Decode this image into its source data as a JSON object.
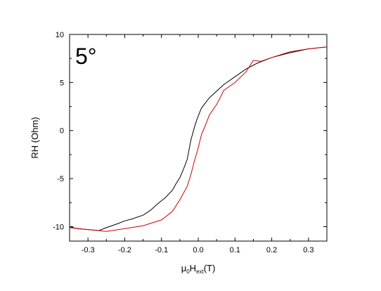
{
  "chart_data": {
    "type": "line",
    "title": "",
    "annotation": "5°",
    "xlabel": {
      "base": "μ",
      "sub1": "0",
      "main": "H",
      "sub2": "ext",
      "unit": "(T)"
    },
    "ylabel": "RH (Ohm)",
    "xlim": [
      -0.35,
      0.35
    ],
    "ylim": [
      -11.5,
      10
    ],
    "x_ticks": [
      -0.3,
      -0.2,
      -0.1,
      0.0,
      0.1,
      0.2,
      0.3
    ],
    "x_tick_labels": [
      "-0.3",
      "-0.2",
      "-0.1",
      "0.0",
      "0.1",
      "0.2",
      "0.3"
    ],
    "y_ticks": [
      -10,
      -5,
      0,
      5,
      10
    ],
    "y_tick_labels": [
      "-10",
      "-5",
      "0",
      "5",
      "10"
    ],
    "grid": false,
    "series": [
      {
        "color": "#000000",
        "x": [
          -0.35,
          -0.33,
          -0.3,
          -0.27,
          -0.25,
          -0.22,
          -0.2,
          -0.18,
          -0.15,
          -0.13,
          -0.11,
          -0.09,
          -0.07,
          -0.06,
          -0.05,
          -0.04,
          -0.03,
          -0.025,
          -0.02,
          -0.015,
          -0.01,
          -0.005,
          0.0,
          0.005,
          0.01,
          0.02,
          0.03,
          0.05,
          0.07,
          0.1,
          0.13,
          0.16,
          0.2,
          0.25,
          0.3,
          0.35
        ],
        "y": [
          -10.0,
          -10.2,
          -10.3,
          -10.4,
          -10.1,
          -9.7,
          -9.4,
          -9.2,
          -8.8,
          -8.3,
          -7.6,
          -7.0,
          -6.2,
          -5.5,
          -4.9,
          -4.0,
          -3.0,
          -2.0,
          -1.0,
          -0.3,
          0.4,
          1.0,
          1.5,
          2.0,
          2.4,
          2.9,
          3.4,
          4.1,
          4.8,
          5.6,
          6.4,
          7.0,
          7.6,
          8.1,
          8.5,
          8.7
        ]
      },
      {
        "color": "#cc0000",
        "x": [
          -0.35,
          -0.3,
          -0.25,
          -0.2,
          -0.15,
          -0.1,
          -0.07,
          -0.05,
          -0.03,
          -0.02,
          -0.01,
          0.0,
          0.005,
          0.01,
          0.02,
          0.03,
          0.05,
          0.07,
          0.1,
          0.13,
          0.15,
          0.17,
          0.2,
          0.25,
          0.3,
          0.35
        ],
        "y": [
          -10.1,
          -10.3,
          -10.5,
          -10.2,
          -9.9,
          -9.3,
          -8.4,
          -7.2,
          -5.8,
          -4.6,
          -3.1,
          -1.8,
          -1.0,
          -0.3,
          0.6,
          1.6,
          2.7,
          4.2,
          5.0,
          6.1,
          7.3,
          7.2,
          7.6,
          8.2,
          8.5,
          8.7
        ]
      }
    ]
  }
}
